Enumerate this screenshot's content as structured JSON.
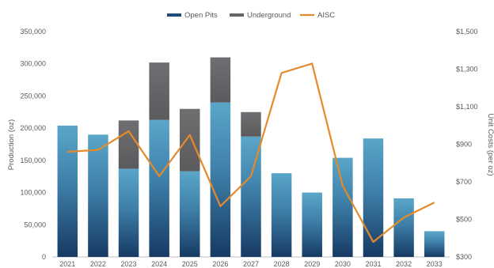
{
  "chart_data": {
    "type": "bar",
    "categories": [
      "2021",
      "2022",
      "2023",
      "2024",
      "2025",
      "2026",
      "2027",
      "2028",
      "2029",
      "2030",
      "2031",
      "2032",
      "2033"
    ],
    "series": [
      {
        "name": "Open Pits",
        "kind": "bar",
        "axis": "left",
        "values": [
          204000,
          190000,
          137000,
          213000,
          133000,
          240000,
          187000,
          130000,
          100000,
          154000,
          184000,
          91000,
          40000
        ]
      },
      {
        "name": "Underground",
        "kind": "bar",
        "axis": "left",
        "values": [
          0,
          0,
          75000,
          89000,
          97000,
          70000,
          38000,
          0,
          0,
          0,
          0,
          0,
          0
        ]
      },
      {
        "name": "AISC",
        "kind": "line",
        "axis": "right",
        "values": [
          860,
          870,
          970,
          730,
          950,
          570,
          730,
          1280,
          1330,
          680,
          380,
          510,
          590
        ]
      }
    ],
    "xlabel": "",
    "ylabel": "Production (oz)",
    "y2label": "Unit Costs (per oz)",
    "ylim": [
      0,
      350000
    ],
    "y2lim": [
      300,
      1500
    ],
    "yticks": [
      "0",
      "50,000",
      "100,000",
      "150,000",
      "200,000",
      "250,000",
      "300,000",
      "350,000"
    ],
    "y2ticks": [
      "$300",
      "$500",
      "$700",
      "$900",
      "$1,100",
      "$1,300",
      "$1,500"
    ],
    "legend": {
      "position": "top",
      "entries": [
        "Open Pits",
        "Underground",
        "AISC"
      ]
    },
    "grid": false,
    "colors": {
      "open_pits_top": "#5aa6c9",
      "open_pits_bottom": "#163a63",
      "underground_top": "#6f6f72",
      "underground_bottom": "#5b5b5e",
      "aisc_line": "#e58a2a",
      "axis_line": "#bfbfbf"
    }
  }
}
